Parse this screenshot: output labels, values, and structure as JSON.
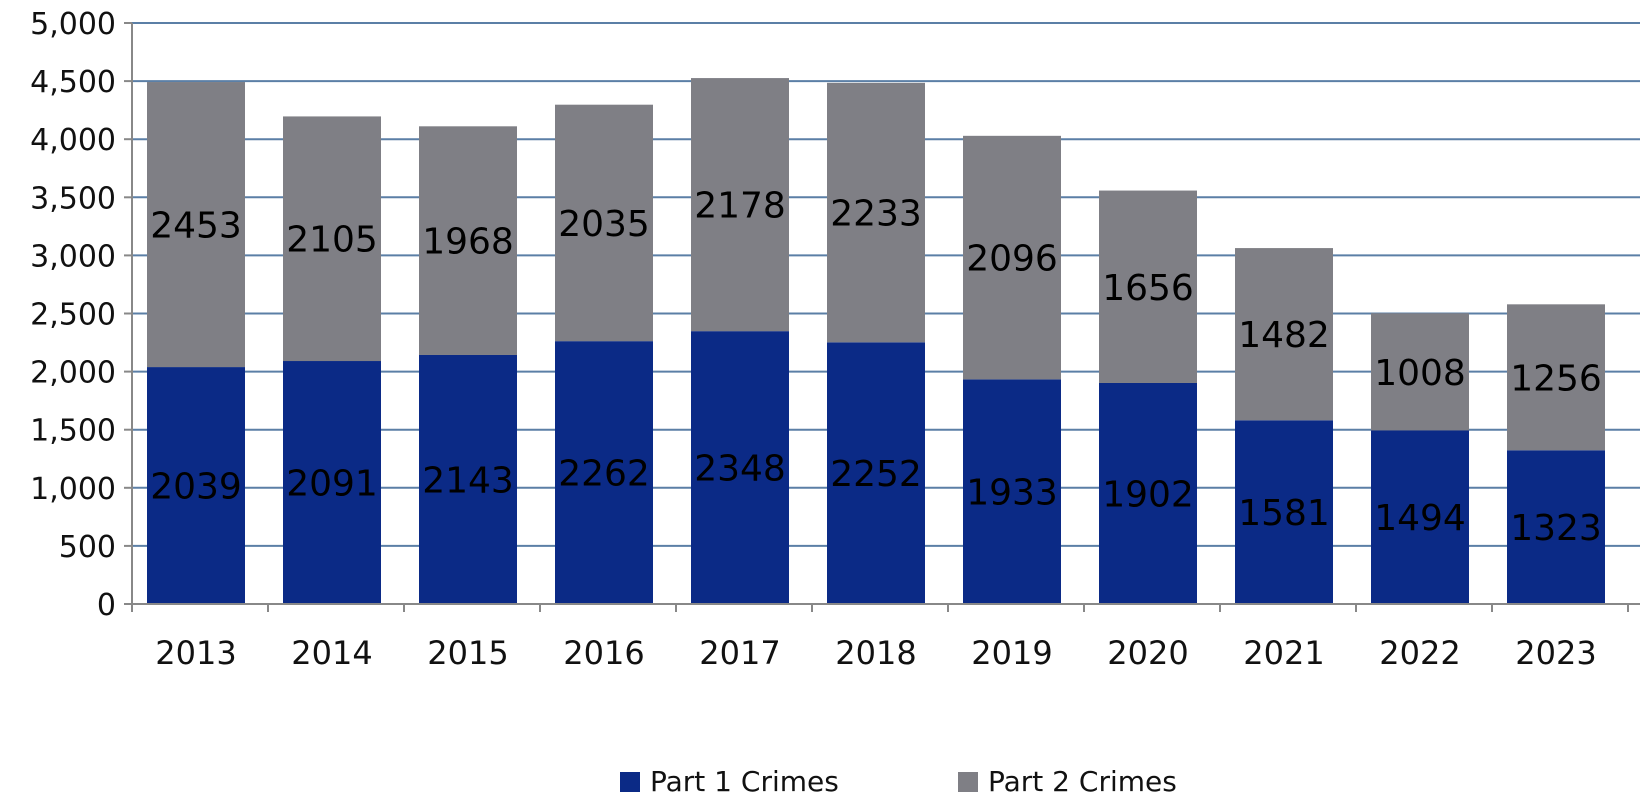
{
  "chart_data": {
    "type": "bar",
    "stacked": true,
    "title": "",
    "xlabel": "",
    "ylabel": "",
    "categories": [
      "2013",
      "2014",
      "2015",
      "2016",
      "2017",
      "2018",
      "2019",
      "2020",
      "2021",
      "2022",
      "2023"
    ],
    "series": [
      {
        "name": "Part 1 Crimes",
        "color": "#0b2a86",
        "values": [
          2039,
          2091,
          2143,
          2262,
          2348,
          2252,
          1933,
          1902,
          1581,
          1494,
          1323
        ]
      },
      {
        "name": "Part 2 Crimes",
        "color": "#7f7f85",
        "values": [
          2453,
          2105,
          1968,
          2035,
          2178,
          2233,
          2096,
          1656,
          1482,
          1008,
          1256
        ]
      }
    ],
    "ylim": [
      0,
      5000
    ],
    "yticks": [
      0,
      500,
      1000,
      1500,
      2000,
      2500,
      3000,
      3500,
      4000,
      4500,
      5000
    ],
    "ytick_labels": [
      "0",
      "500",
      "1,000",
      "1,500",
      "2,000",
      "2,500",
      "3,000",
      "3,500",
      "4,000",
      "4,500",
      "5,000"
    ],
    "grid": true,
    "legend_position": "bottom-center",
    "gridline_color": "#5b7fa6"
  }
}
